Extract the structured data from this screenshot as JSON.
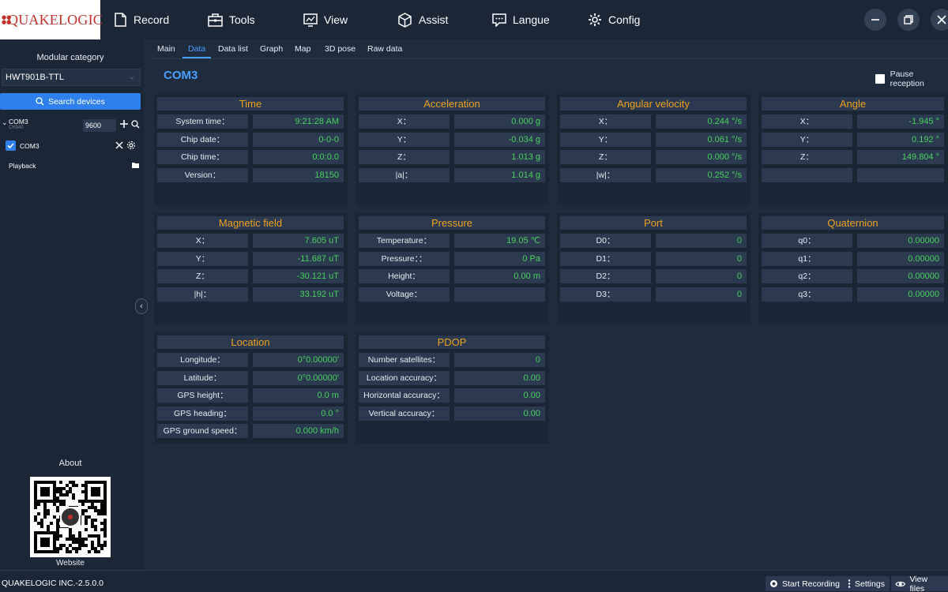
{
  "app": {
    "logo_text": "QUAKELOGIC",
    "version": "QUAKELOGIC INC.-2.5.0.0"
  },
  "menu": [
    {
      "label": "Record",
      "icon": "document-icon"
    },
    {
      "label": "Tools",
      "icon": "toolbox-icon"
    },
    {
      "label": "View",
      "icon": "monitor-chart-icon"
    },
    {
      "label": "Assist",
      "icon": "cube-icon"
    },
    {
      "label": "Langue",
      "icon": "chat-icon"
    },
    {
      "label": "Config",
      "icon": "gear-icon"
    }
  ],
  "sidebar": {
    "title": "Modular category",
    "model": "HWT901B-TTL",
    "search_label": "Search devices",
    "port_group": {
      "name": "COM3",
      "sub": "CH340",
      "baud": "9600"
    },
    "device": {
      "name": "COM3",
      "checked": true
    },
    "playback_label": "Playback",
    "about_label": "About",
    "website_label": "Website"
  },
  "tabs": [
    "Main",
    "Data",
    "Data list",
    "Graph",
    "Map",
    "3D pose",
    "Raw data"
  ],
  "active_tab": "Data",
  "com_title": "COM3",
  "pause_label": "Pause reception",
  "panels": [
    {
      "title": "Time",
      "rows": [
        {
          "label": "System time：",
          "value": "9:21:28 AM"
        },
        {
          "label": "Chip date：",
          "value": "0-0-0"
        },
        {
          "label": "Chip time：",
          "value": "0:0:0.0"
        },
        {
          "label": "Version：",
          "value": "18150"
        }
      ]
    },
    {
      "title": "Acceleration",
      "rows": [
        {
          "label": "X：",
          "value": "0.000 g"
        },
        {
          "label": "Y：",
          "value": "-0.034 g"
        },
        {
          "label": "Z：",
          "value": "1.013 g"
        },
        {
          "label": "|a|：",
          "value": "1.014 g"
        }
      ]
    },
    {
      "title": "Angular velocity",
      "rows": [
        {
          "label": "X：",
          "value": "0.244 °/s"
        },
        {
          "label": "Y：",
          "value": "0.061 °/s"
        },
        {
          "label": "Z：",
          "value": "0.000 °/s"
        },
        {
          "label": "|w|：",
          "value": "0.252 °/s"
        }
      ]
    },
    {
      "title": "Angle",
      "rows": [
        {
          "label": "X：",
          "value": "-1.945 °"
        },
        {
          "label": "Y：",
          "value": "0.192 °"
        },
        {
          "label": "Z：",
          "value": "149.804 °"
        },
        {
          "label": "",
          "value": ""
        }
      ]
    },
    {
      "title": "Magnetic field",
      "rows": [
        {
          "label": "X：",
          "value": "7.605 uT"
        },
        {
          "label": "Y：",
          "value": "-11.687 uT"
        },
        {
          "label": "Z：",
          "value": "-30.121 uT"
        },
        {
          "label": "|h|：",
          "value": "33.192 uT"
        }
      ]
    },
    {
      "title": "Pressure",
      "rows": [
        {
          "label": "Temperature：",
          "value": "19.05 ℃"
        },
        {
          "label": "Pressure：：",
          "value": "0 Pa"
        },
        {
          "label": "Height：",
          "value": "0.00 m"
        },
        {
          "label": "Voltage：",
          "value": ""
        }
      ]
    },
    {
      "title": "Port",
      "rows": [
        {
          "label": "D0：",
          "value": "0"
        },
        {
          "label": "D1：",
          "value": "0"
        },
        {
          "label": "D2：",
          "value": "0"
        },
        {
          "label": "D3：",
          "value": "0"
        }
      ]
    },
    {
      "title": "Quaternion",
      "rows": [
        {
          "label": "q0：",
          "value": "0.00000"
        },
        {
          "label": "q1：",
          "value": "0.00000"
        },
        {
          "label": "q2：",
          "value": "0.00000"
        },
        {
          "label": "q3：",
          "value": "0.00000"
        }
      ]
    },
    {
      "title": "Location",
      "rows": [
        {
          "label": "Longitude：",
          "value": "0°0.00000'"
        },
        {
          "label": "Latitude：",
          "value": "0°0.00000'"
        },
        {
          "label": "GPS height：",
          "value": "0.0 m"
        },
        {
          "label": "GPS heading：",
          "value": "0.0 °"
        },
        {
          "label": "GPS ground speed：",
          "value": "0.000 km/h"
        }
      ]
    },
    {
      "title": "PDOP",
      "rows": [
        {
          "label": "Number satellites：",
          "value": "0"
        },
        {
          "label": "Location accuracy：",
          "value": "0.00"
        },
        {
          "label": "Horizontal accuracy：",
          "value": "0.00"
        },
        {
          "label": "Vertical accuracy：",
          "value": "0.00"
        }
      ]
    }
  ],
  "statusbar": {
    "start_recording": "Start Recording",
    "settings": "Settings",
    "view_files": "View files"
  }
}
